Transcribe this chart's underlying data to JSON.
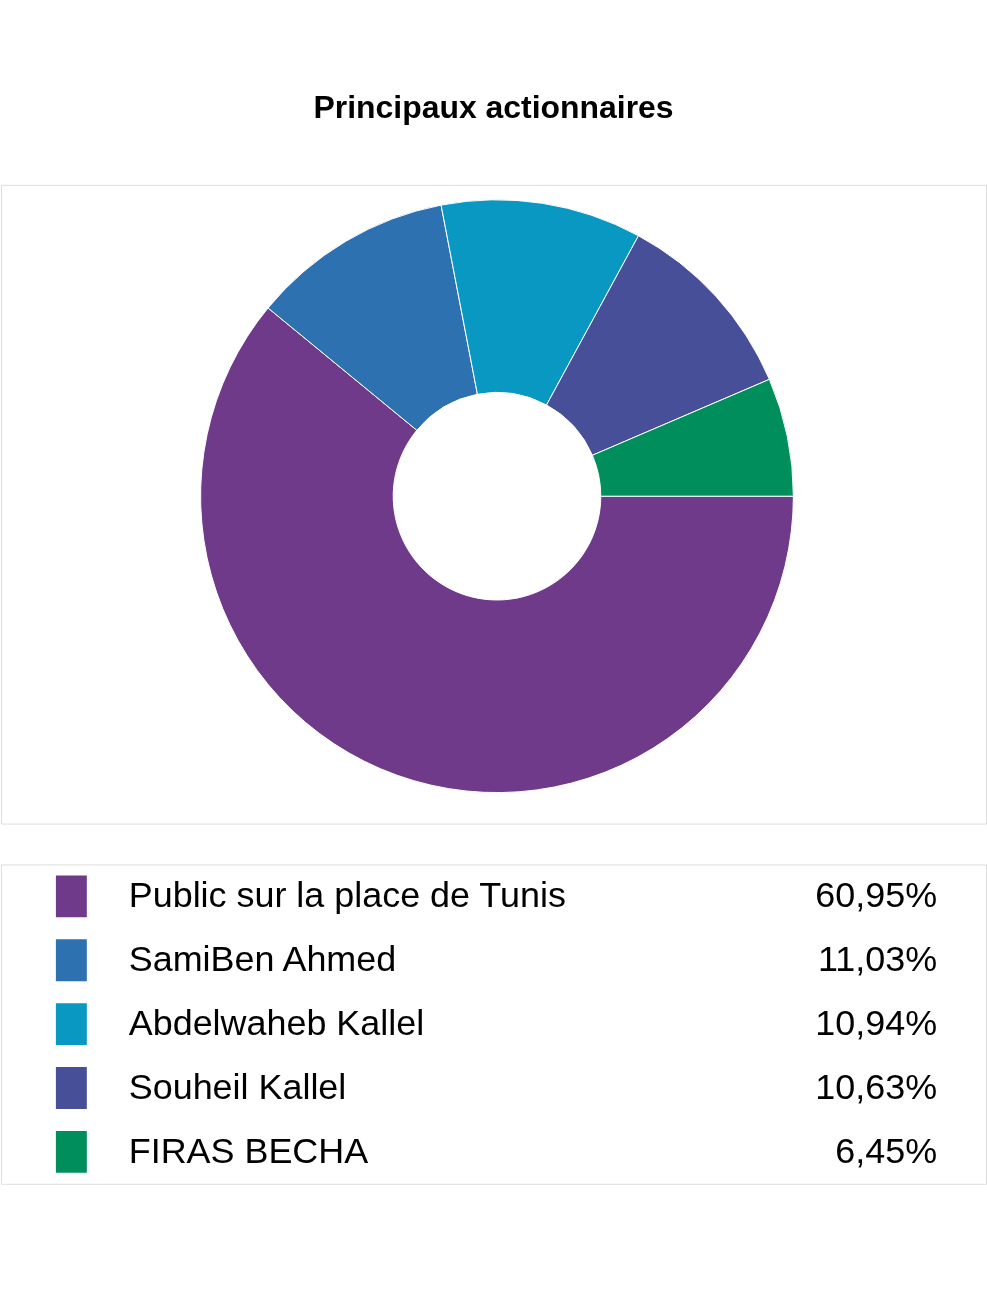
{
  "chart_data": {
    "type": "donut",
    "title": "Principaux actionnaires",
    "categories": [
      "Public sur la place de Tunis",
      "SamiBen Ahmed",
      "Abdelwaheb Kallel",
      "Souheil Kallel",
      "FIRAS BECHA"
    ],
    "values": [
      60.95,
      11.03,
      10.94,
      10.63,
      6.45
    ],
    "value_labels": [
      "60,95%",
      "11,03%",
      "10,94%",
      "10,63%",
      "6,45%"
    ],
    "colors": [
      "#6e3a89",
      "#2e71b0",
      "#0898c1",
      "#474f99",
      "#008f5c"
    ],
    "legend": "bottom"
  }
}
